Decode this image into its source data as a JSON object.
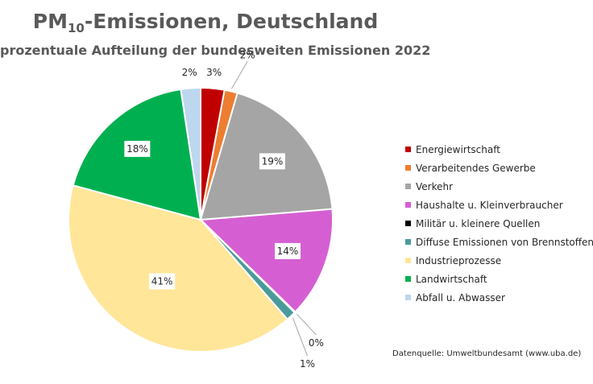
{
  "header": {
    "title_main": "PM",
    "title_sub": "10",
    "title_rest": "-Emissionen, Deutschland",
    "subtitle": "prozentuale Aufteilung der bundesweiten Emissionen 2022"
  },
  "source": "Datenquelle: Umweltbundesamt (www.uba.de)",
  "chart_data": {
    "type": "pie",
    "title": "PM10-Emissionen, Deutschland",
    "subtitle": "prozentuale Aufteilung der bundesweiten Emissionen 2022",
    "unit": "%",
    "legend_position": "right",
    "categories": [
      "Energiewirtschaft",
      "Verarbeitendes Gewerbe",
      "Verkehr",
      "Haushalte u. Kleinverbraucher",
      "Militär u. kleinere Quellen",
      "Diffuse Emissionen von Brennstoffen",
      "Industrieprozesse",
      "Landwirtschaft",
      "Abfall u. Abwasser"
    ],
    "values": [
      2.9,
      1.6,
      19.2,
      13.6,
      0.1,
      1.2,
      40.6,
      18.4,
      2.4
    ],
    "labels": [
      "3%",
      "2%",
      "19%",
      "14%",
      "0%",
      "1%",
      "41%",
      "18%",
      "2%"
    ],
    "colors": [
      "#c00000",
      "#ed7d31",
      "#a5a5a5",
      "#d55fd2",
      "#000000",
      "#4a9a9c",
      "#ffe699",
      "#00b050",
      "#bdd7ee"
    ]
  }
}
